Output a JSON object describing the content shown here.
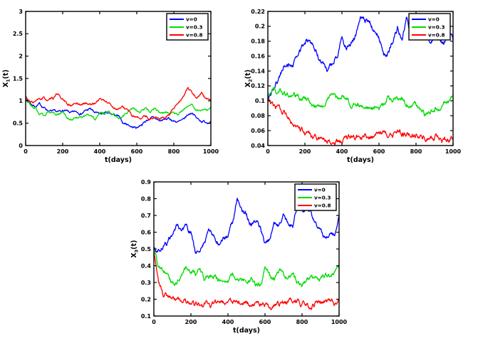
{
  "figure": {
    "background": "#ffffff"
  },
  "colors": {
    "axis": "#000000",
    "blue": "#0000ff",
    "green": "#00dc00",
    "red": "#ff0000",
    "legend_bg": "#ffffff"
  },
  "chart_data": [
    {
      "type": "line",
      "title": "",
      "xlabel": "t(days)",
      "ylabel": "X_1(t)",
      "xlim": [
        0,
        1000
      ],
      "ylim": [
        0,
        3
      ],
      "xticks": [
        "0",
        "200",
        "400",
        "600",
        "800",
        "1000"
      ],
      "yticks": [
        "0",
        "0.5",
        "1",
        "1.5",
        "2",
        "2.5",
        "3"
      ],
      "grid": false,
      "legend": {
        "position": "top-right",
        "entries": [
          "v=0",
          "v=0.3",
          "v=0.8"
        ]
      },
      "noise_hint": 0.018,
      "x": [
        0,
        25,
        50,
        75,
        100,
        125,
        150,
        175,
        200,
        225,
        250,
        275,
        300,
        325,
        350,
        375,
        400,
        425,
        450,
        475,
        500,
        525,
        550,
        575,
        600,
        625,
        650,
        675,
        700,
        725,
        750,
        775,
        800,
        825,
        850,
        875,
        900,
        925,
        950,
        975,
        1000
      ],
      "series": [
        {
          "name": "v=0",
          "color_key": "blue",
          "y": [
            1.05,
            0.95,
            0.88,
            0.92,
            0.85,
            0.78,
            0.75,
            0.73,
            0.78,
            0.75,
            0.72,
            0.75,
            0.73,
            0.78,
            0.82,
            0.72,
            0.7,
            0.72,
            0.7,
            0.68,
            0.65,
            0.5,
            0.48,
            0.42,
            0.4,
            0.48,
            0.55,
            0.62,
            0.6,
            0.55,
            0.58,
            0.6,
            0.55,
            0.53,
            0.55,
            0.68,
            0.75,
            0.6,
            0.55,
            0.53,
            0.55
          ]
        },
        {
          "name": "v=0.3",
          "color_key": "green",
          "y": [
            1.02,
            0.92,
            0.85,
            0.72,
            0.68,
            0.75,
            0.7,
            0.68,
            0.76,
            0.62,
            0.6,
            0.65,
            0.63,
            0.7,
            0.65,
            0.57,
            0.7,
            0.7,
            0.73,
            0.7,
            0.62,
            0.65,
            0.72,
            0.86,
            0.8,
            0.78,
            0.82,
            0.75,
            0.85,
            0.72,
            0.76,
            0.72,
            0.76,
            0.7,
            0.78,
            0.88,
            0.95,
            0.78,
            0.75,
            0.8,
            0.82
          ]
        },
        {
          "name": "v=0.8",
          "color_key": "red",
          "y": [
            1.1,
            0.95,
            0.98,
            1.02,
            1.05,
            1.0,
            1.05,
            1.15,
            1.02,
            0.92,
            0.9,
            0.95,
            0.92,
            0.95,
            0.92,
            0.95,
            1.05,
            1.0,
            0.95,
            0.85,
            0.82,
            0.85,
            0.8,
            0.65,
            0.6,
            0.62,
            0.65,
            0.6,
            0.65,
            0.6,
            0.63,
            0.68,
            0.8,
            0.95,
            1.05,
            1.28,
            1.15,
            1.08,
            1.15,
            1.05,
            1.02
          ]
        }
      ]
    },
    {
      "type": "line",
      "title": "",
      "xlabel": "t(days)",
      "ylabel": "X_2(t)",
      "xlim": [
        0,
        1000
      ],
      "ylim": [
        0.04,
        0.22
      ],
      "xticks": [
        "0",
        "200",
        "400",
        "600",
        "800",
        "1000"
      ],
      "yticks": [
        "0.04",
        "0.06",
        "0.08",
        "0.1",
        "0.12",
        "0.14",
        "0.16",
        "0.18",
        "0.2",
        "0.22"
      ],
      "grid": false,
      "legend": {
        "position": "top-right",
        "entries": [
          "v=0",
          "v=0.3",
          "v=0.8"
        ]
      },
      "noise_hint": 0.0024,
      "x": [
        0,
        25,
        50,
        75,
        100,
        125,
        150,
        175,
        200,
        225,
        250,
        275,
        300,
        325,
        350,
        375,
        400,
        425,
        450,
        475,
        500,
        525,
        550,
        575,
        600,
        625,
        650,
        675,
        700,
        725,
        750,
        775,
        800,
        825,
        850,
        875,
        900,
        925,
        950,
        975,
        1000
      ],
      "series": [
        {
          "name": "v=0",
          "color_key": "blue",
          "y": [
            0.1,
            0.115,
            0.125,
            0.14,
            0.15,
            0.148,
            0.155,
            0.165,
            0.18,
            0.185,
            0.17,
            0.158,
            0.148,
            0.14,
            0.15,
            0.16,
            0.185,
            0.17,
            0.18,
            0.19,
            0.218,
            0.21,
            0.205,
            0.192,
            0.188,
            0.162,
            0.165,
            0.18,
            0.198,
            0.185,
            0.208,
            0.19,
            0.186,
            0.192,
            0.185,
            0.18,
            0.19,
            0.185,
            0.182,
            0.19,
            0.18
          ]
        },
        {
          "name": "v=0.3",
          "color_key": "green",
          "y": [
            0.105,
            0.12,
            0.112,
            0.115,
            0.106,
            0.105,
            0.106,
            0.104,
            0.106,
            0.098,
            0.09,
            0.094,
            0.091,
            0.106,
            0.11,
            0.102,
            0.104,
            0.106,
            0.094,
            0.091,
            0.092,
            0.09,
            0.089,
            0.091,
            0.089,
            0.096,
            0.104,
            0.1,
            0.101,
            0.104,
            0.099,
            0.094,
            0.092,
            0.089,
            0.082,
            0.086,
            0.09,
            0.093,
            0.098,
            0.097,
            0.105
          ]
        },
        {
          "name": "v=0.8",
          "color_key": "red",
          "y": [
            0.1,
            0.096,
            0.09,
            0.083,
            0.078,
            0.07,
            0.064,
            0.061,
            0.058,
            0.056,
            0.048,
            0.046,
            0.045,
            0.045,
            0.046,
            0.047,
            0.049,
            0.05,
            0.054,
            0.049,
            0.05,
            0.053,
            0.05,
            0.052,
            0.055,
            0.057,
            0.05,
            0.053,
            0.06,
            0.055,
            0.053,
            0.055,
            0.056,
            0.053,
            0.05,
            0.051,
            0.053,
            0.052,
            0.048,
            0.045,
            0.053
          ]
        }
      ]
    },
    {
      "type": "line",
      "title": "",
      "xlabel": "t(days)",
      "ylabel": "X_3(t)",
      "xlim": [
        0,
        1000
      ],
      "ylim": [
        0.1,
        0.9
      ],
      "xticks": [
        "0",
        "200",
        "400",
        "600",
        "800",
        "1000"
      ],
      "yticks": [
        "0.1",
        "0.2",
        "0.3",
        "0.4",
        "0.5",
        "0.6",
        "0.7",
        "0.8",
        "0.9"
      ],
      "grid": false,
      "legend": {
        "position": "top-right",
        "entries": [
          "v=0",
          "v=0.3",
          "v=0.8"
        ]
      },
      "noise_hint": 0.01,
      "x": [
        0,
        25,
        50,
        75,
        100,
        125,
        150,
        175,
        200,
        225,
        250,
        275,
        300,
        325,
        350,
        375,
        400,
        425,
        450,
        475,
        500,
        525,
        550,
        575,
        600,
        625,
        650,
        675,
        700,
        725,
        750,
        775,
        800,
        825,
        850,
        875,
        900,
        925,
        950,
        975,
        1000
      ],
      "series": [
        {
          "name": "v=0",
          "color_key": "blue",
          "y": [
            0.5,
            0.49,
            0.52,
            0.54,
            0.57,
            0.62,
            0.6,
            0.63,
            0.6,
            0.47,
            0.5,
            0.55,
            0.6,
            0.58,
            0.52,
            0.55,
            0.57,
            0.65,
            0.81,
            0.72,
            0.7,
            0.65,
            0.67,
            0.63,
            0.52,
            0.56,
            0.65,
            0.62,
            0.7,
            0.66,
            0.64,
            0.77,
            0.72,
            0.73,
            0.7,
            0.64,
            0.6,
            0.56,
            0.6,
            0.58,
            0.7
          ]
        },
        {
          "name": "v=0.3",
          "color_key": "green",
          "y": [
            0.5,
            0.41,
            0.38,
            0.34,
            0.28,
            0.31,
            0.34,
            0.4,
            0.38,
            0.36,
            0.38,
            0.31,
            0.33,
            0.34,
            0.32,
            0.34,
            0.32,
            0.34,
            0.32,
            0.32,
            0.33,
            0.32,
            0.27,
            0.28,
            0.38,
            0.34,
            0.33,
            0.37,
            0.35,
            0.33,
            0.34,
            0.3,
            0.29,
            0.31,
            0.33,
            0.32,
            0.33,
            0.35,
            0.34,
            0.36,
            0.4
          ]
        },
        {
          "name": "v=0.8",
          "color_key": "red",
          "y": [
            0.48,
            0.3,
            0.23,
            0.21,
            0.21,
            0.19,
            0.18,
            0.18,
            0.17,
            0.16,
            0.17,
            0.18,
            0.18,
            0.17,
            0.18,
            0.19,
            0.17,
            0.18,
            0.17,
            0.19,
            0.18,
            0.19,
            0.18,
            0.17,
            0.18,
            0.16,
            0.17,
            0.17,
            0.17,
            0.19,
            0.2,
            0.19,
            0.17,
            0.18,
            0.16,
            0.17,
            0.18,
            0.19,
            0.18,
            0.17,
            0.18
          ]
        }
      ]
    }
  ]
}
